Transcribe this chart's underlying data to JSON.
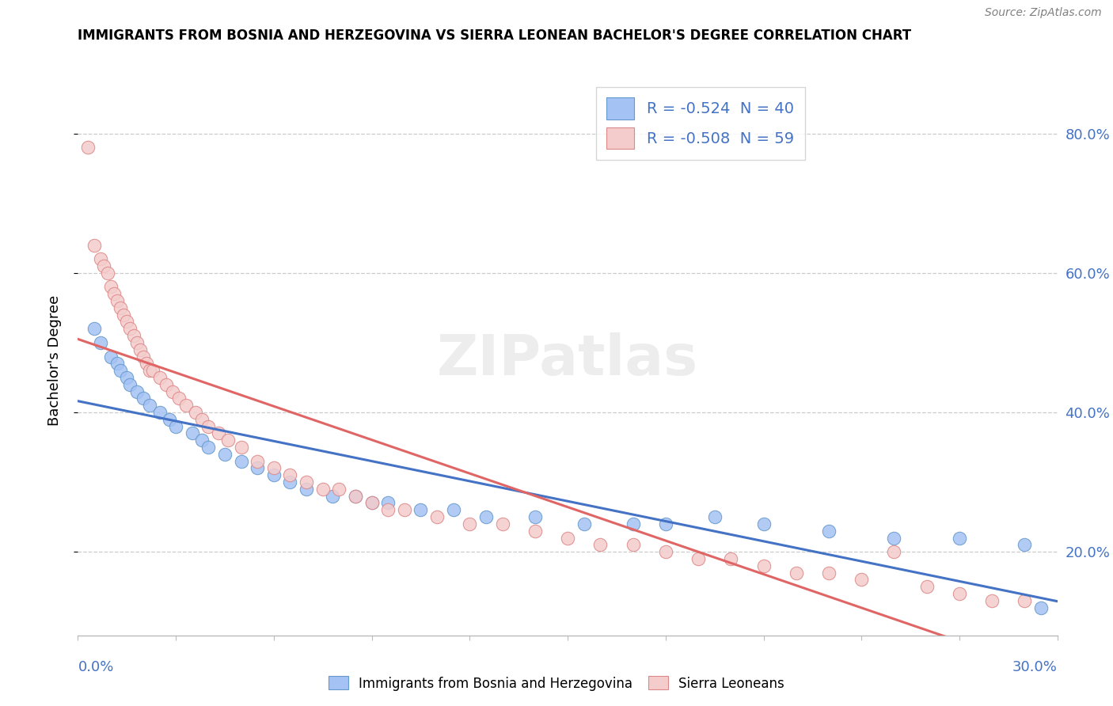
{
  "title": "IMMIGRANTS FROM BOSNIA AND HERZEGOVINA VS SIERRA LEONEAN BACHELOR'S DEGREE CORRELATION CHART",
  "source": "Source: ZipAtlas.com",
  "ylabel": "Bachelor's Degree",
  "xmin": 0.0,
  "xmax": 0.3,
  "ymin": 0.08,
  "ymax": 0.87,
  "yticks": [
    0.2,
    0.4,
    0.6,
    0.8
  ],
  "ytick_labels": [
    "20.0%",
    "40.0%",
    "60.0%",
    "80.0%"
  ],
  "xtick_left": "0.0%",
  "xtick_right": "30.0%",
  "bosnia_face_color": "#a4c2f4",
  "bosnia_edge_color": "#6699cc",
  "sierra_face_color": "#f4cccc",
  "sierra_edge_color": "#dd8888",
  "bosnia_line_color": "#4472c4",
  "sierra_line_color": "#e06666",
  "axis_label_color": "#4472c4",
  "bosnia_R": -0.524,
  "bosnia_N": 40,
  "sierra_R": -0.508,
  "sierra_N": 59,
  "legend_label_bosnia": "Immigrants from Bosnia and Herzegovina",
  "legend_label_sierra": "Sierra Leoneans",
  "watermark": "ZIPatlas",
  "bosnia_scatter_x": [
    0.005,
    0.007,
    0.01,
    0.012,
    0.013,
    0.015,
    0.016,
    0.018,
    0.02,
    0.022,
    0.025,
    0.028,
    0.03,
    0.035,
    0.038,
    0.04,
    0.045,
    0.05,
    0.055,
    0.06,
    0.065,
    0.07,
    0.078,
    0.085,
    0.09,
    0.095,
    0.105,
    0.115,
    0.125,
    0.14,
    0.155,
    0.17,
    0.18,
    0.195,
    0.21,
    0.23,
    0.25,
    0.27,
    0.29,
    0.295
  ],
  "bosnia_scatter_y": [
    0.52,
    0.5,
    0.48,
    0.47,
    0.46,
    0.45,
    0.44,
    0.43,
    0.42,
    0.41,
    0.4,
    0.39,
    0.38,
    0.37,
    0.36,
    0.35,
    0.34,
    0.33,
    0.32,
    0.31,
    0.3,
    0.29,
    0.28,
    0.28,
    0.27,
    0.27,
    0.26,
    0.26,
    0.25,
    0.25,
    0.24,
    0.24,
    0.24,
    0.25,
    0.24,
    0.23,
    0.22,
    0.22,
    0.21,
    0.12
  ],
  "sierra_scatter_x": [
    0.003,
    0.005,
    0.007,
    0.008,
    0.009,
    0.01,
    0.011,
    0.012,
    0.013,
    0.014,
    0.015,
    0.016,
    0.017,
    0.018,
    0.019,
    0.02,
    0.021,
    0.022,
    0.023,
    0.025,
    0.027,
    0.029,
    0.031,
    0.033,
    0.036,
    0.038,
    0.04,
    0.043,
    0.046,
    0.05,
    0.055,
    0.06,
    0.065,
    0.07,
    0.075,
    0.08,
    0.085,
    0.09,
    0.095,
    0.1,
    0.11,
    0.12,
    0.13,
    0.14,
    0.15,
    0.16,
    0.17,
    0.18,
    0.19,
    0.2,
    0.21,
    0.22,
    0.23,
    0.24,
    0.25,
    0.26,
    0.27,
    0.28,
    0.29
  ],
  "sierra_scatter_y": [
    0.78,
    0.64,
    0.62,
    0.61,
    0.6,
    0.58,
    0.57,
    0.56,
    0.55,
    0.54,
    0.53,
    0.52,
    0.51,
    0.5,
    0.49,
    0.48,
    0.47,
    0.46,
    0.46,
    0.45,
    0.44,
    0.43,
    0.42,
    0.41,
    0.4,
    0.39,
    0.38,
    0.37,
    0.36,
    0.35,
    0.33,
    0.32,
    0.31,
    0.3,
    0.29,
    0.29,
    0.28,
    0.27,
    0.26,
    0.26,
    0.25,
    0.24,
    0.24,
    0.23,
    0.22,
    0.21,
    0.21,
    0.2,
    0.19,
    0.19,
    0.18,
    0.17,
    0.17,
    0.16,
    0.2,
    0.15,
    0.14,
    0.13,
    0.13
  ]
}
